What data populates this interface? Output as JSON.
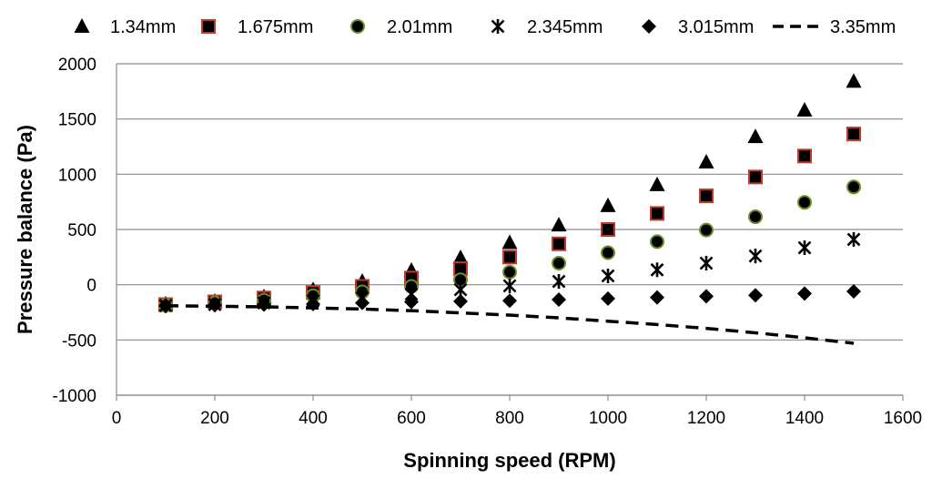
{
  "chart_data": {
    "type": "scatter",
    "title": "",
    "xlabel": "Spinning speed (RPM)",
    "ylabel": "Pressure balance (Pa)",
    "xlim": [
      0,
      1600
    ],
    "ylim": [
      -1000,
      2000
    ],
    "xticks": [
      0,
      200,
      400,
      600,
      800,
      1000,
      1200,
      1400,
      1600
    ],
    "yticks": [
      -1000,
      -500,
      0,
      500,
      1000,
      1500,
      2000
    ],
    "grid": "horizontal",
    "legend_position": "top",
    "x": [
      100,
      200,
      300,
      400,
      500,
      600,
      700,
      800,
      900,
      1000,
      1100,
      1200,
      1300,
      1400,
      1500
    ],
    "series": [
      {
        "name": "1.34mm",
        "marker": "triangle",
        "color": "#000000",
        "values": [
          -175,
          -150,
          -110,
          -45,
          30,
          130,
          245,
          380,
          540,
          715,
          905,
          1110,
          1340,
          1580,
          1840
        ]
      },
      {
        "name": "1.675mm",
        "marker": "square",
        "color": "#000000",
        "edge_color": "#c0392b",
        "values": [
          -180,
          -155,
          -120,
          -70,
          -15,
          60,
          145,
          250,
          370,
          500,
          645,
          805,
          975,
          1165,
          1365
        ]
      },
      {
        "name": "2.01mm",
        "marker": "circle",
        "color": "#000000",
        "edge_color": "#6b8e23",
        "values": [
          -185,
          -165,
          -140,
          -100,
          -65,
          -15,
          45,
          115,
          195,
          290,
          390,
          495,
          615,
          745,
          885
        ]
      },
      {
        "name": "2.345mm",
        "marker": "asterisk",
        "color": "#000000",
        "values": [
          -190,
          -180,
          -165,
          -145,
          -120,
          -85,
          -45,
          -10,
          30,
          80,
          135,
          195,
          260,
          335,
          410
        ]
      },
      {
        "name": "3.015mm",
        "marker": "diamond",
        "color": "#000000",
        "values": [
          -190,
          -185,
          -180,
          -175,
          -165,
          -155,
          -150,
          -145,
          -135,
          -125,
          -115,
          -105,
          -95,
          -80,
          -60
        ]
      },
      {
        "name": "3.35mm",
        "marker": "dashed-line",
        "color": "#000000",
        "values": [
          -190,
          -195,
          -200,
          -210,
          -220,
          -235,
          -255,
          -275,
          -300,
          -330,
          -360,
          -395,
          -435,
          -480,
          -530
        ]
      }
    ]
  }
}
